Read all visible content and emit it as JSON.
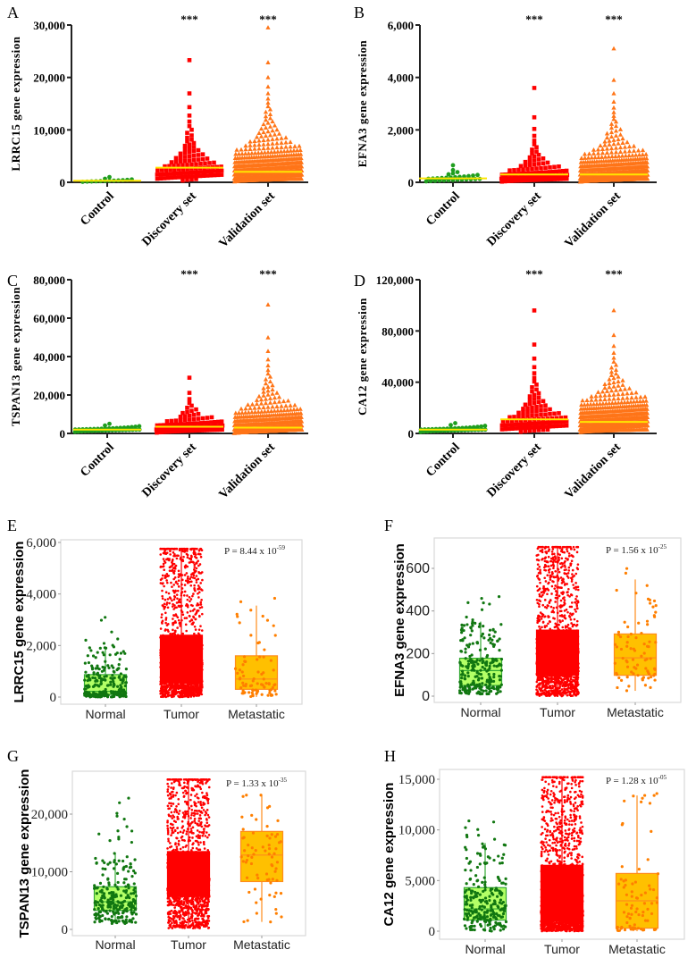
{
  "chart_data": [
    {
      "panel": "A",
      "type": "scatter",
      "style": "dot-plot",
      "ylabel": "LRRC15 gene expression",
      "ylim": [
        0,
        30000
      ],
      "yticks": [
        0,
        10000,
        20000,
        30000
      ],
      "ytick_labels": [
        "0",
        "10,000",
        "20,000",
        "30,000"
      ],
      "categories": [
        "Control",
        "Discovery set",
        "Validation set"
      ],
      "significance": [
        "",
        "***",
        "***"
      ],
      "groups": [
        {
          "median": 300,
          "max": 1000,
          "marker": "circle",
          "color": "#1f9e1f"
        },
        {
          "median": 2800,
          "max": 23300,
          "marker": "square",
          "color": "#ff0000"
        },
        {
          "median": 2000,
          "max": 29500,
          "marker": "triangle",
          "color": "#ff7518"
        }
      ],
      "median_line_color": "#ffe600"
    },
    {
      "panel": "B",
      "type": "scatter",
      "style": "dot-plot",
      "ylabel": "EFNA3 gene expression",
      "ylim": [
        0,
        6000
      ],
      "yticks": [
        0,
        2000,
        4000,
        6000
      ],
      "ytick_labels": [
        "0",
        "2,000",
        "4,000",
        "6,000"
      ],
      "categories": [
        "Control",
        "Discovery set",
        "Validation set"
      ],
      "significance": [
        "",
        "***",
        "***"
      ],
      "groups": [
        {
          "median": 150,
          "max": 650,
          "marker": "circle",
          "color": "#1f9e1f"
        },
        {
          "median": 300,
          "max": 3600,
          "marker": "square",
          "color": "#ff0000"
        },
        {
          "median": 300,
          "max": 5100,
          "marker": "triangle",
          "color": "#ff7518"
        }
      ],
      "median_line_color": "#ffe600"
    },
    {
      "panel": "C",
      "type": "scatter",
      "style": "dot-plot",
      "ylabel": "TSPAN13 gene expression",
      "ylim": [
        0,
        80000
      ],
      "yticks": [
        0,
        20000,
        40000,
        60000,
        80000
      ],
      "ytick_labels": [
        "0",
        "20,000",
        "40,000",
        "60,000",
        "80,000"
      ],
      "categories": [
        "Control",
        "Discovery set",
        "Validation set"
      ],
      "significance": [
        "",
        "***",
        "***"
      ],
      "groups": [
        {
          "median": 2000,
          "max": 5000,
          "marker": "circle",
          "color": "#1f9e1f"
        },
        {
          "median": 3500,
          "max": 29000,
          "marker": "square",
          "color": "#ff0000"
        },
        {
          "median": 3000,
          "max": 67000,
          "marker": "triangle",
          "color": "#ff7518"
        }
      ],
      "median_line_color": "#ffe600"
    },
    {
      "panel": "D",
      "type": "scatter",
      "style": "dot-plot",
      "ylabel": "CA12 gene expression",
      "ylim": [
        0,
        120000
      ],
      "yticks": [
        0,
        40000,
        80000,
        120000
      ],
      "ytick_labels": [
        "0",
        "40,000",
        "80,000",
        "120,000"
      ],
      "categories": [
        "Control",
        "Discovery set",
        "Validation set"
      ],
      "significance": [
        "",
        "***",
        "***"
      ],
      "groups": [
        {
          "median": 3000,
          "max": 8000,
          "marker": "circle",
          "color": "#1f9e1f"
        },
        {
          "median": 11000,
          "max": 96000,
          "marker": "square",
          "color": "#ff0000"
        },
        {
          "median": 9000,
          "max": 96000,
          "marker": "triangle",
          "color": "#ff7518"
        }
      ],
      "median_line_color": "#ffe600"
    },
    {
      "panel": "E",
      "type": "box",
      "style": "box-jitter",
      "ylabel": "LRRC15 gene expression",
      "yticks": [
        0,
        2000,
        4000,
        6000
      ],
      "ytick_labels": [
        "0",
        "2,000",
        "4,000",
        "6,000"
      ],
      "categories": [
        "Normal",
        "Tumor",
        "Metastatic"
      ],
      "p_value": {
        "text": "P = 8.44 x 10",
        "exponent": "-59"
      },
      "groups": [
        {
          "min": 0,
          "q1": 100,
          "median": 220,
          "q3": 870,
          "whisker_high": 1950,
          "max": 3300,
          "fill": "#b3ff66",
          "stroke": "#33aa33",
          "point_color": "#117711"
        },
        {
          "min": 0,
          "q1": 550,
          "median": 1200,
          "q3": 2400,
          "whisker_high": 5750,
          "max": 5750,
          "fill": "#ff0000",
          "stroke": "#ff0000",
          "point_color": "#ff0000"
        },
        {
          "min": 0,
          "q1": 300,
          "median": 700,
          "q3": 1600,
          "whisker_high": 3550,
          "max": 4800,
          "fill": "#ffc000",
          "stroke": "#ff8c1a",
          "point_color": "#ff7f00"
        }
      ]
    },
    {
      "panel": "F",
      "type": "box",
      "style": "box-jitter",
      "ylabel": "EFNA3 gene expression",
      "yticks": [
        0,
        200,
        400,
        600
      ],
      "ytick_labels": [
        "0",
        "200",
        "400",
        "600"
      ],
      "categories": [
        "Normal",
        "Tumor",
        "Metastatic"
      ],
      "p_value": {
        "text": "P = 1.56 x 10",
        "exponent": "-25"
      },
      "groups": [
        {
          "min": 10,
          "q1": 50,
          "median": 120,
          "q3": 178,
          "whisker_high": 350,
          "max": 470,
          "fill": "#b3ff66",
          "stroke": "#33aa33",
          "point_color": "#117711"
        },
        {
          "min": 0,
          "q1": 100,
          "median": 190,
          "q3": 310,
          "whisker_high": 700,
          "max": 700,
          "fill": "#ff0000",
          "stroke": "#ff0000",
          "point_color": "#ff0000"
        },
        {
          "min": 25,
          "q1": 98,
          "median": 180,
          "q3": 292,
          "whisker_high": 548,
          "max": 630,
          "fill": "#ffc000",
          "stroke": "#ff8c1a",
          "point_color": "#ff7f00"
        }
      ]
    },
    {
      "panel": "G",
      "type": "box",
      "style": "box-jitter",
      "ylabel": "TSPAN13 gene expression",
      "yticks": [
        0,
        10000,
        20000
      ],
      "ytick_labels": [
        "0",
        "10,000",
        "20,000"
      ],
      "categories": [
        "Normal",
        "Tumor",
        "Metastatic"
      ],
      "p_value": {
        "text": "P = 1.33 x 10",
        "exponent": "-35"
      },
      "groups": [
        {
          "min": 1000,
          "q1": 3300,
          "median": 4800,
          "q3": 7400,
          "whisker_high": 13200,
          "max": 23000,
          "fill": "#b3ff66",
          "stroke": "#33aa33",
          "point_color": "#117711"
        },
        {
          "min": 200,
          "q1": 5700,
          "median": 9000,
          "q3": 13500,
          "whisker_high": 26000,
          "max": 26000,
          "fill": "#ff0000",
          "stroke": "#ff0000",
          "point_color": "#ff0000"
        },
        {
          "min": 1300,
          "q1": 8300,
          "median": 12900,
          "q3": 17000,
          "whisker_high": 23300,
          "max": 23300,
          "fill": "#ffc000",
          "stroke": "#ff8c1a",
          "point_color": "#ff7f00"
        }
      ]
    },
    {
      "panel": "H",
      "type": "box",
      "style": "box-jitter",
      "ylabel": "CA12 gene expression",
      "yticks": [
        0,
        5000,
        10000,
        15000
      ],
      "ytick_labels": [
        "0",
        "5,000",
        "10,000",
        "15,000"
      ],
      "categories": [
        "Normal",
        "Tumor",
        "Metastatic"
      ],
      "p_value": {
        "text": "P = 1.28 x 10",
        "exponent": "-05"
      },
      "groups": [
        {
          "min": 0,
          "q1": 1100,
          "median": 2200,
          "q3": 4300,
          "whisker_high": 8700,
          "max": 11100,
          "fill": "#b3ff66",
          "stroke": "#33aa33",
          "point_color": "#117711"
        },
        {
          "min": 0,
          "q1": 1000,
          "median": 3000,
          "q3": 6500,
          "whisker_high": 15200,
          "max": 15200,
          "fill": "#ff0000",
          "stroke": "#ff0000",
          "point_color": "#ff0000"
        },
        {
          "min": 0,
          "q1": 300,
          "median": 3000,
          "q3": 5700,
          "whisker_high": 13400,
          "max": 13600,
          "fill": "#ffc000",
          "stroke": "#ff8c1a",
          "point_color": "#ff7f00"
        }
      ]
    }
  ]
}
